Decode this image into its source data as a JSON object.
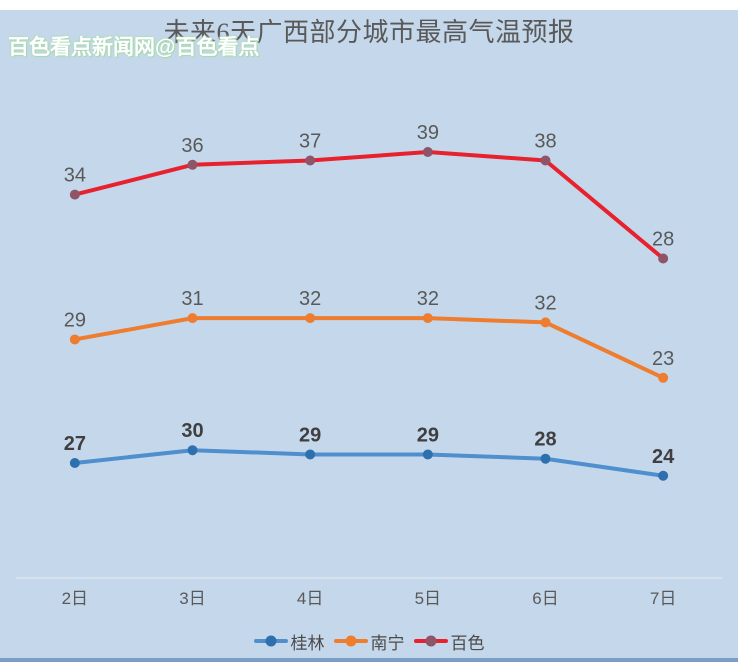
{
  "page": {
    "title": "未来6天广西部分城市最高气温预报",
    "watermark": "百色看点新闻网@百色看点"
  },
  "colors": {
    "background": "#c5d8eb",
    "top_strip": "#ffffff",
    "bottom_strip": "#7b9dc6",
    "title_text": "#595959",
    "axis_text": "#595959",
    "axis_line": "#dce5f0",
    "watermark_text": "#ffffff",
    "watermark_glow": "#a8d8b0",
    "legend_text": "#4a4a4a"
  },
  "chart_data": {
    "type": "line",
    "stacked": true,
    "title": "未来6天广西部分城市最高气温预报",
    "categories": [
      "2日",
      "3日",
      "4日",
      "5日",
      "6日",
      "7日"
    ],
    "series": [
      {
        "name": "桂林",
        "values": [
          27,
          30,
          29,
          29,
          28,
          24
        ],
        "line_color": "#4f8fce",
        "marker_color": "#2e6fae",
        "label_color": "#3f3f3f",
        "label_bold": true
      },
      {
        "name": "南宁",
        "values": [
          29,
          31,
          32,
          32,
          32,
          23
        ],
        "line_color": "#ee7d2f",
        "marker_color": "#ee7d2f",
        "label_color": "#595959",
        "label_bold": false
      },
      {
        "name": "百色",
        "values": [
          34,
          36,
          37,
          39,
          38,
          28
        ],
        "line_color": "#e8212e",
        "marker_color": "#8f5468",
        "label_color": "#595959",
        "label_bold": false
      }
    ],
    "legend_position": "bottom",
    "grid": false,
    "value_axis_hidden": true,
    "value_axis_range": [
      0,
      110
    ],
    "xlabel": "",
    "ylabel": ""
  }
}
